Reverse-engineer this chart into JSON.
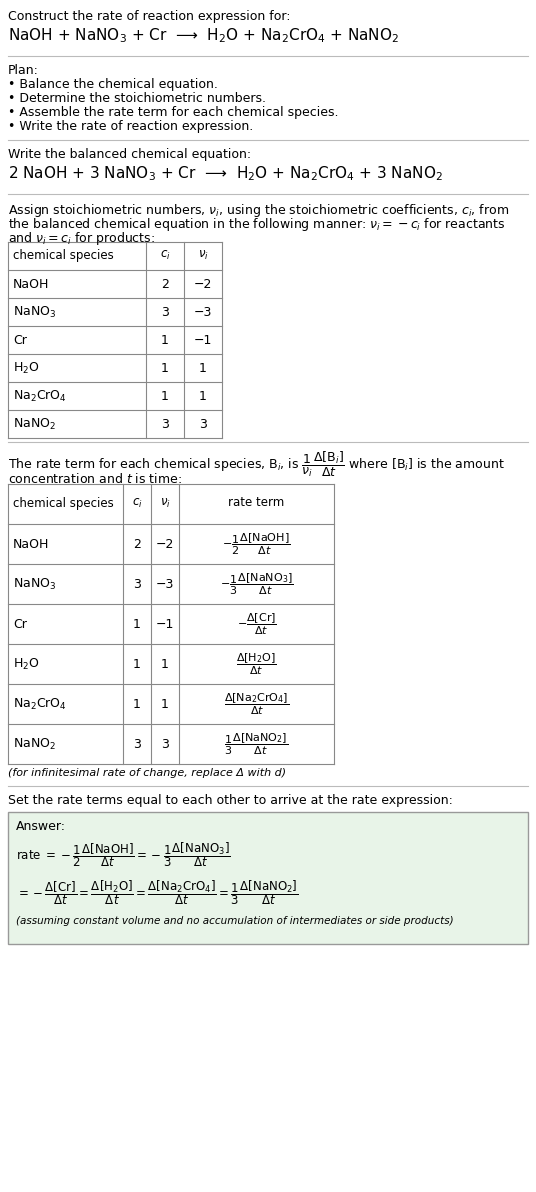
{
  "title_line1": "Construct the rate of reaction expression for:",
  "title_line2": "NaOH + NaNO$_3$ + Cr  ⟶  H$_2$O + Na$_2$CrO$_4$ + NaNO$_2$",
  "plan_header": "Plan:",
  "plan_items": [
    "• Balance the chemical equation.",
    "• Determine the stoichiometric numbers.",
    "• Assemble the rate term for each chemical species.",
    "• Write the rate of reaction expression."
  ],
  "balanced_header": "Write the balanced chemical equation:",
  "balanced_eq": "2 NaOH + 3 NaNO$_3$ + Cr  ⟶  H$_2$O + Na$_2$CrO$_4$ + 3 NaNO$_2$",
  "stoich_intro1": "Assign stoichiometric numbers, $\\nu_i$, using the stoichiometric coefficients, $c_i$, from",
  "stoich_intro2": "the balanced chemical equation in the following manner: $\\nu_i = -c_i$ for reactants",
  "stoich_intro3": "and $\\nu_i = c_i$ for products:",
  "table1_headers": [
    "chemical species",
    "$c_i$",
    "$\\nu_i$"
  ],
  "table1_rows": [
    [
      "NaOH",
      "2",
      "−2"
    ],
    [
      "NaNO$_3$",
      "3",
      "−3"
    ],
    [
      "Cr",
      "1",
      "−1"
    ],
    [
      "H$_2$O",
      "1",
      "1"
    ],
    [
      "Na$_2$CrO$_4$",
      "1",
      "1"
    ],
    [
      "NaNO$_2$",
      "3",
      "3"
    ]
  ],
  "rate_intro1": "The rate term for each chemical species, B$_i$, is $\\dfrac{1}{\\nu_i}\\dfrac{\\Delta[\\mathrm{B}_i]}{\\Delta t}$ where [B$_i$] is the amount",
  "rate_intro2": "concentration and $t$ is time:",
  "table2_headers": [
    "chemical species",
    "$c_i$",
    "$\\nu_i$",
    "rate term"
  ],
  "table2_rows": [
    [
      "NaOH",
      "2",
      "−2",
      "$-\\dfrac{1}{2}\\dfrac{\\Delta[\\mathrm{NaOH}]}{\\Delta t}$"
    ],
    [
      "NaNO$_3$",
      "3",
      "−3",
      "$-\\dfrac{1}{3}\\dfrac{\\Delta[\\mathrm{NaNO}_3]}{\\Delta t}$"
    ],
    [
      "Cr",
      "1",
      "−1",
      "$-\\dfrac{\\Delta[\\mathrm{Cr}]}{\\Delta t}$"
    ],
    [
      "H$_2$O",
      "1",
      "1",
      "$\\dfrac{\\Delta[\\mathrm{H_2O}]}{\\Delta t}$"
    ],
    [
      "Na$_2$CrO$_4$",
      "1",
      "1",
      "$\\dfrac{\\Delta[\\mathrm{Na_2CrO_4}]}{\\Delta t}$"
    ],
    [
      "NaNO$_2$",
      "3",
      "3",
      "$\\dfrac{1}{3}\\dfrac{\\Delta[\\mathrm{NaNO}_2]}{\\Delta t}$"
    ]
  ],
  "infinitesimal_note": "(for infinitesimal rate of change, replace Δ with d)",
  "set_equal_text": "Set the rate terms equal to each other to arrive at the rate expression:",
  "answer_label": "Answer:",
  "answer_line1": "rate $= -\\dfrac{1}{2}\\dfrac{\\Delta[\\mathrm{NaOH}]}{\\Delta t} = -\\dfrac{1}{3}\\dfrac{\\Delta[\\mathrm{NaNO}_3]}{\\Delta t}$",
  "answer_line2": "$= -\\dfrac{\\Delta[\\mathrm{Cr}]}{\\Delta t} = \\dfrac{\\Delta[\\mathrm{H_2O}]}{\\Delta t} = \\dfrac{\\Delta[\\mathrm{Na_2CrO_4}]}{\\Delta t} = \\dfrac{1}{3}\\dfrac{\\Delta[\\mathrm{NaNO}_2]}{\\Delta t}$",
  "answer_note": "(assuming constant volume and no accumulation of intermediates or side products)",
  "answer_box_color": "#e8f4e8",
  "bg_color": "#ffffff",
  "text_color": "#000000",
  "line_color": "#bbbbbb",
  "table_color": "#888888",
  "font_size": 9.0,
  "fig_width": 5.36,
  "fig_height": 11.92,
  "dpi": 100
}
